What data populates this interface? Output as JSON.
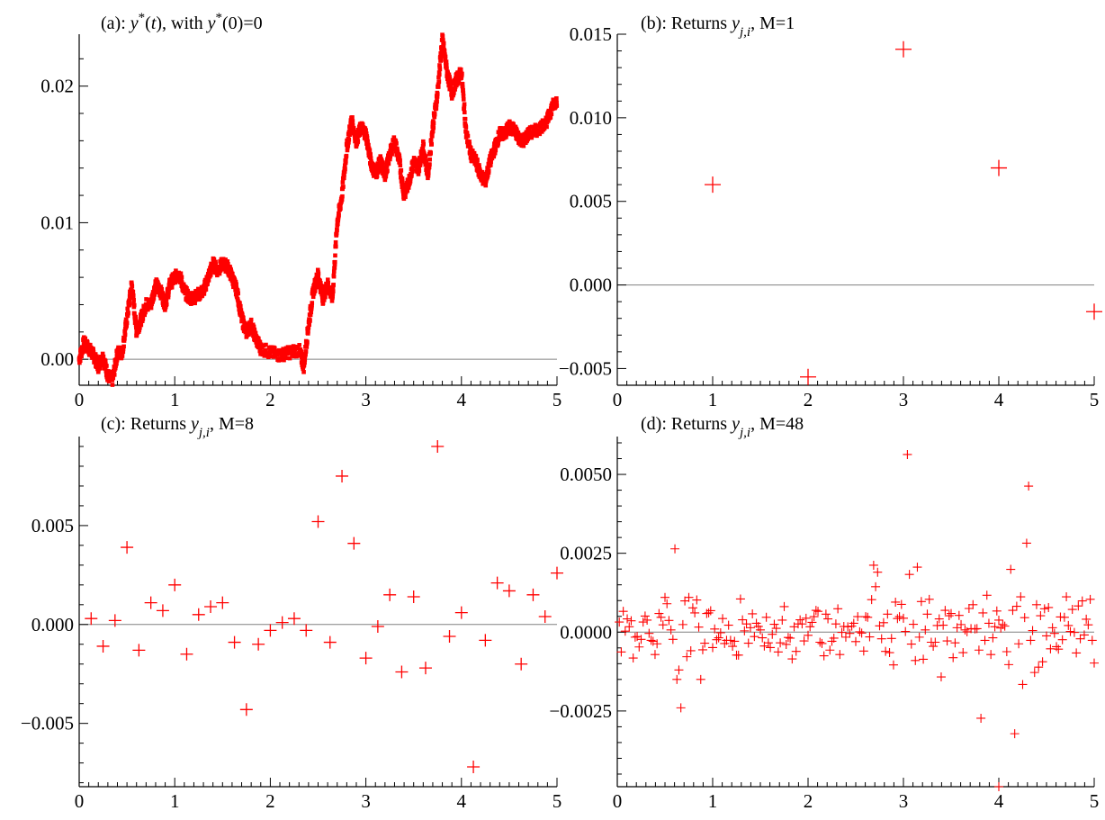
{
  "chart_data": [
    {
      "id": "a",
      "type": "scatter",
      "title_prefix": "(a): ",
      "title_var": "y",
      "title_sup1": "*",
      "title_mid": "(",
      "title_t": "t",
      "title_mid2": "), with ",
      "title_var2": "y",
      "title_sup2": "*",
      "title_end": "(0)=0",
      "xlim": [
        0,
        5
      ],
      "ylim": [
        -0.0019,
        0.0238
      ],
      "xticks": [
        0,
        1,
        2,
        3,
        4,
        5
      ],
      "xtick_labels": [
        "0",
        "1",
        "2",
        "3",
        "4",
        "5"
      ],
      "yticks": [
        0.0,
        0.01,
        0.02
      ],
      "ytick_labels": [
        "0.00",
        "0.01",
        "0.02"
      ],
      "zero_line": true,
      "color": "#ff0000",
      "marker": "square",
      "series_path": [
        [
          0,
          0
        ],
        [
          0.05,
          0.0012
        ],
        [
          0.1,
          0.0008
        ],
        [
          0.15,
          0.0003
        ],
        [
          0.2,
          -0.0005
        ],
        [
          0.25,
          0.0002
        ],
        [
          0.3,
          -0.0012
        ],
        [
          0.35,
          -0.0015
        ],
        [
          0.4,
          0.0005
        ],
        [
          0.45,
          0.0005
        ],
        [
          0.5,
          0.003
        ],
        [
          0.55,
          0.0055
        ],
        [
          0.6,
          0.002
        ],
        [
          0.65,
          0.003
        ],
        [
          0.7,
          0.004
        ],
        [
          0.75,
          0.004
        ],
        [
          0.8,
          0.0055
        ],
        [
          0.85,
          0.005
        ],
        [
          0.9,
          0.004
        ],
        [
          0.95,
          0.0055
        ],
        [
          1.0,
          0.006
        ],
        [
          1.05,
          0.0062
        ],
        [
          1.1,
          0.005
        ],
        [
          1.15,
          0.0045
        ],
        [
          1.2,
          0.0045
        ],
        [
          1.3,
          0.005
        ],
        [
          1.35,
          0.006
        ],
        [
          1.4,
          0.007
        ],
        [
          1.45,
          0.0065
        ],
        [
          1.5,
          0.007
        ],
        [
          1.55,
          0.0068
        ],
        [
          1.6,
          0.006
        ],
        [
          1.65,
          0.005
        ],
        [
          1.7,
          0.003
        ],
        [
          1.75,
          0.002
        ],
        [
          1.8,
          0.0025
        ],
        [
          1.85,
          0.0015
        ],
        [
          1.9,
          0.0008
        ],
        [
          2.0,
          0.0005
        ],
        [
          2.1,
          0.0003
        ],
        [
          2.2,
          0.0005
        ],
        [
          2.3,
          0.0007
        ],
        [
          2.35,
          -0.0005
        ],
        [
          2.4,
          0.0025
        ],
        [
          2.45,
          0.005
        ],
        [
          2.5,
          0.0062
        ],
        [
          2.55,
          0.0045
        ],
        [
          2.6,
          0.0055
        ],
        [
          2.65,
          0.0045
        ],
        [
          2.7,
          0.01
        ],
        [
          2.75,
          0.012
        ],
        [
          2.8,
          0.0155
        ],
        [
          2.85,
          0.0175
        ],
        [
          2.9,
          0.016
        ],
        [
          2.95,
          0.017
        ],
        [
          3.0,
          0.0165
        ],
        [
          3.05,
          0.0145
        ],
        [
          3.1,
          0.0135
        ],
        [
          3.15,
          0.0145
        ],
        [
          3.2,
          0.0135
        ],
        [
          3.25,
          0.015
        ],
        [
          3.3,
          0.016
        ],
        [
          3.35,
          0.0145
        ],
        [
          3.4,
          0.012
        ],
        [
          3.45,
          0.013
        ],
        [
          3.5,
          0.0145
        ],
        [
          3.55,
          0.014
        ],
        [
          3.6,
          0.0155
        ],
        [
          3.65,
          0.0135
        ],
        [
          3.7,
          0.017
        ],
        [
          3.75,
          0.0195
        ],
        [
          3.8,
          0.0235
        ],
        [
          3.85,
          0.021
        ],
        [
          3.9,
          0.0195
        ],
        [
          3.95,
          0.0205
        ],
        [
          4.0,
          0.021
        ],
        [
          4.05,
          0.0165
        ],
        [
          4.1,
          0.015
        ],
        [
          4.15,
          0.0145
        ],
        [
          4.2,
          0.0135
        ],
        [
          4.25,
          0.013
        ],
        [
          4.3,
          0.0145
        ],
        [
          4.35,
          0.0155
        ],
        [
          4.4,
          0.0165
        ],
        [
          4.45,
          0.0165
        ],
        [
          4.5,
          0.017
        ],
        [
          4.55,
          0.0168
        ],
        [
          4.6,
          0.0162
        ],
        [
          4.65,
          0.016
        ],
        [
          4.7,
          0.0165
        ],
        [
          4.8,
          0.0168
        ],
        [
          4.9,
          0.0175
        ],
        [
          4.95,
          0.0185
        ],
        [
          5.0,
          0.019
        ]
      ]
    },
    {
      "id": "b",
      "type": "scatter",
      "title_prefix": "(b): Returns ",
      "title_var": "y",
      "title_sub": "j,i",
      "title_end": ", M=1",
      "xlim": [
        0,
        5
      ],
      "ylim": [
        -0.006,
        0.015
      ],
      "xticks": [
        0,
        1,
        2,
        3,
        4,
        5
      ],
      "xtick_labels": [
        "0",
        "1",
        "2",
        "3",
        "4",
        "5"
      ],
      "yticks": [
        -0.005,
        0.0,
        0.005,
        0.01,
        0.015
      ],
      "ytick_labels": [
        "−0.005",
        "0.000",
        "0.005",
        "0.010",
        "0.015"
      ],
      "zero_line": true,
      "color": "#ff0000",
      "marker": "plus",
      "marker_size": 18,
      "x": [
        1,
        2,
        3,
        4,
        5
      ],
      "y": [
        0.006,
        -0.0055,
        0.0141,
        0.007,
        -0.0016
      ]
    },
    {
      "id": "c",
      "type": "scatter",
      "title_prefix": "(c): Returns ",
      "title_var": "y",
      "title_sub": "j,i",
      "title_end": ", M=8",
      "xlim": [
        0,
        5
      ],
      "ylim": [
        -0.0082,
        0.0095
      ],
      "xticks": [
        0,
        1,
        2,
        3,
        4,
        5
      ],
      "xtick_labels": [
        "0",
        "1",
        "2",
        "3",
        "4",
        "5"
      ],
      "yticks": [
        -0.005,
        0.0,
        0.005
      ],
      "ytick_labels": [
        "−0.005",
        "0.000",
        "0.005"
      ],
      "zero_line": true,
      "color": "#ff0000",
      "marker": "plus",
      "marker_size": 14,
      "x": [
        0.125,
        0.25,
        0.375,
        0.5,
        0.625,
        0.75,
        0.875,
        1.0,
        1.125,
        1.25,
        1.375,
        1.5,
        1.625,
        1.75,
        1.875,
        2.0,
        2.125,
        2.25,
        2.375,
        2.5,
        2.625,
        2.75,
        2.875,
        3.0,
        3.125,
        3.25,
        3.375,
        3.5,
        3.625,
        3.75,
        3.875,
        4.0,
        4.125,
        4.25,
        4.375,
        4.5,
        4.625,
        4.75,
        4.875,
        5.0
      ],
      "y": [
        0.0003,
        -0.0011,
        0.0002,
        0.0039,
        -0.0013,
        0.0011,
        0.0007,
        0.002,
        -0.0015,
        0.0005,
        0.0009,
        0.0011,
        -0.0009,
        -0.0043,
        -0.001,
        -0.0003,
        0.0001,
        0.0003,
        -0.0003,
        0.0052,
        -0.0009,
        0.0075,
        0.0041,
        -0.0017,
        -0.0001,
        0.0015,
        -0.0024,
        0.0014,
        -0.0022,
        0.009,
        -0.0006,
        0.0006,
        -0.0072,
        -0.0008,
        0.0021,
        0.0017,
        -0.002,
        0.0015,
        0.0004,
        0.0026
      ]
    },
    {
      "id": "d",
      "type": "scatter",
      "title_prefix": "(d): Returns ",
      "title_var": "y",
      "title_sub": "j,i",
      "title_end": ", M=48",
      "xlim": [
        0,
        5
      ],
      "ylim": [
        -0.0049,
        0.0062
      ],
      "xticks": [
        0,
        1,
        2,
        3,
        4,
        5
      ],
      "xtick_labels": [
        "0",
        "1",
        "2",
        "3",
        "4",
        "5"
      ],
      "yticks": [
        -0.0025,
        0.0,
        0.0025,
        0.005
      ],
      "ytick_labels": [
        "−0.0025",
        "0.0000",
        "0.0025",
        "0.0050"
      ],
      "zero_line": true,
      "color": "#ff0000",
      "marker": "plus",
      "marker_size": 10,
      "x_step": 0.020833333333333332,
      "y": [
        0.00032,
        -0.00063,
        0.00066,
        3e-05,
        0.00042,
        0.00017,
        0.00036,
        -0.00082,
        -0.00016,
        -0.00014,
        -0.00047,
        -0.00023,
        0.00032,
        0.00051,
        0.00038,
        -4e-05,
        -0.00026,
        -0.00029,
        -0.00071,
        -0.00037,
        0.00059,
        0.00047,
        0.00023,
        0.0011,
        0.0009,
        0.00037,
        7e-05,
        -0.00023,
        0.00264,
        -0.0015,
        -0.0012,
        -0.0024,
        0.00024,
        0.00099,
        -0.00078,
        0.0011,
        -0.00059,
        0.00077,
        0.00061,
        0.00102,
        0.00016,
        -0.0015,
        -0.00056,
        -0.00035,
        0.00059,
        0.00061,
        0.00068,
        -0.00049,
        0.0001,
        -0.00024,
        -0.00018,
        -2e-05,
        0.00043,
        -0.00036,
        -0.00026,
        0.00022,
        -0.00026,
        -0.00045,
        -0.00029,
        -0.00073,
        -0.00073,
        0.00105,
        0.00039,
        4e-05,
        0.00026,
        -0.00035,
        0.00014,
        0.00058,
        -0.00014,
        0.00028,
        0.00018,
        7e-05,
        -0.00018,
        -0.00044,
        0.00047,
        -0.00034,
        -0.00049,
        -7e-05,
        0.00025,
        0.00012,
        -0.00063,
        -0.00034,
        0.00038,
        0.00081,
        -0.00039,
        -0.00017,
        -0.00019,
        -0.00085,
        0.00017,
        -0.00061,
        0.00026,
        0.00039,
        0.00026,
        -0.00028,
        0.00044,
        -0.0001,
        0.00017,
        0.00031,
        0.00049,
        0.00069,
        0.00066,
        -0.00032,
        -0.00036,
        -0.00075,
        0.00057,
        0.00042,
        -0.00057,
        -0.00029,
        -0.00019,
        0.00026,
        0.00074,
        -0.00071,
        -1e-05,
        0.00018,
        -0.00016,
        0.00017,
        -4e-05,
        0.00019,
        0.00028,
        -0.0003,
        0.00049,
        1e-05,
        -3e-05,
        -0.0006,
        0.00049,
        0.00047,
        -0.00015,
        0.00103,
        0.00212,
        0.00144,
        0.0019,
        0.0002,
        -0.00021,
        0.0003,
        -0.00061,
        0.00057,
        -0.00065,
        -0.0002,
        -0.00104,
        0.00095,
        0.00043,
        0.00049,
        0.00088,
        0.00044,
        2e-05,
        0.00563,
        0.00183,
        -0.00038,
        0.00025,
        -0.0009,
        0.00206,
        -0.00016,
        0.00097,
        -0.00086,
        7e-05,
        0.00057,
        0.00104,
        -0.00032,
        -0.00045,
        -0.00032,
        0.00021,
        0.00042,
        -0.00142,
        0.00022,
        0.00069,
        -0.00028,
        0.00052,
        0.00059,
        -0.00081,
        -0.00034,
        0.00014,
        0.00053,
        0.00024,
        -0.00065,
        7e-05,
        1e-05,
        0.00075,
        0.00011,
        0.00087,
        0.0001,
        0.00011,
        -0.00057,
        -0.00273,
        0.00061,
        -0.00026,
        0.00117,
        0.00028,
        -0.00071,
        -0.00018,
        0.00017,
        0.00067,
        0.00038,
        0.00013,
        0.00024,
        0.00019,
        -0.00062,
        -0.00103,
        0.00199,
        0.00069,
        -0.00322,
        0.00082,
        -0.00037,
        0.00112,
        -0.00166,
        0.00046,
        0.00282,
        0.00463,
        -0.00026,
        5e-05,
        -0.00128,
        0.00087,
        -0.00111,
        0.00052,
        -0.00094,
        0.00074,
        -0.00012,
        0.00078,
        -0.00053,
        0.00014,
        -4e-05,
        -0.00046,
        -0.00054,
        0.00048,
        -0.00024,
        0.00047,
        0.00112,
        0.00021,
        2e-05,
        0.00072,
        -1e-05,
        -0.00066,
        0.00083,
        -0.00021,
        0.00099,
        -9e-05,
        0.00041,
        0.00023,
        0.00104,
        -0.00026,
        -0.00098,
        -4e-05,
        -0.00069,
        0.00064,
        0.00031,
        -0.00011,
        0.00065,
        0.00097,
        0.00054,
        0.00061,
        -0.00092,
        0.00027,
        0.00045,
        0.00038,
        -5e-05,
        0.00066,
        0.00022,
        0.00064,
        0.00081,
        -0.00045,
        0.00059,
        0.00101,
        0.00066,
        0.00036,
        -0.00056,
        0.00038,
        0.00041,
        0.00076,
        0.00072,
        -8e-05,
        0.00053,
        0.00124,
        -0.00095,
        -0.00491
      ],
      "extra_points": [
        [
          4.0,
          -0.0049
        ]
      ]
    }
  ]
}
